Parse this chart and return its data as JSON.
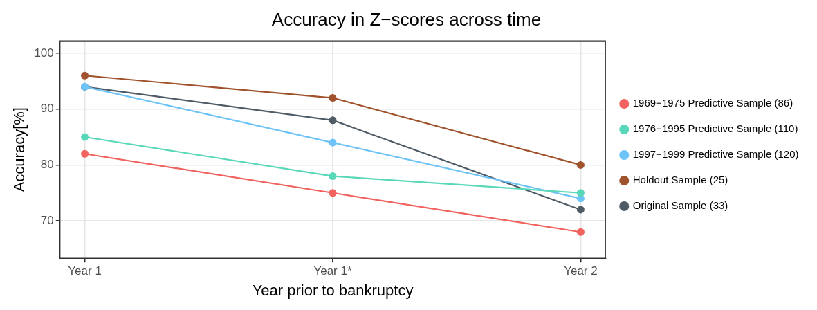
{
  "chart_data": {
    "type": "line",
    "title": "Accuracy in Z−scores across time",
    "xlabel": "Year prior to bankruptcy",
    "ylabel": "Accuracy[%]",
    "categories": [
      "Year 1",
      "Year 1*",
      "Year 2"
    ],
    "series": [
      {
        "name": "1969−1975 Predictive Sample (86)",
        "color": "#f0635e",
        "values": [
          82,
          75,
          68
        ]
      },
      {
        "name": "1976−1995 Predictive Sample (110)",
        "color": "#58d8b8",
        "values": [
          85,
          78,
          75
        ]
      },
      {
        "name": "1997−1999 Predictive Sample (120)",
        "color": "#6ec4f8",
        "values": [
          94,
          84,
          74
        ]
      },
      {
        "name": "Holdout Sample (25)",
        "color": "#a0522d",
        "values": [
          96,
          92,
          80
        ]
      },
      {
        "name": "Original Sample (33)",
        "color": "#4f5b66",
        "values": [
          94,
          88,
          72
        ]
      }
    ],
    "ylim": [
      63.3,
      102.2
    ],
    "yticks": [
      70,
      80,
      90,
      100
    ],
    "grid": true,
    "legend": "right",
    "marker": "circle",
    "line_style": "solid"
  }
}
